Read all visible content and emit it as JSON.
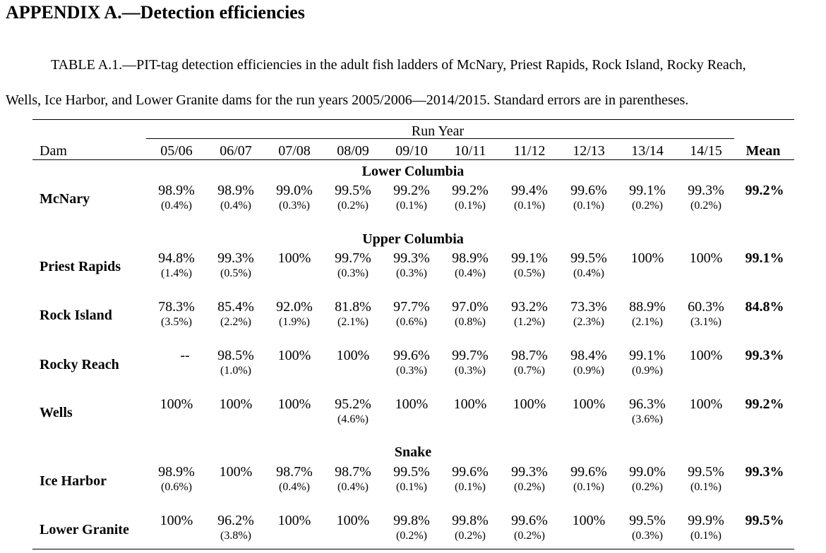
{
  "heading": "APPENDIX A.—Detection efficiencies",
  "caption": {
    "line1": "TABLE A.1.—PIT-tag detection efficiencies in the adult fish ladders of McNary, Priest Rapids, Rock Island, Rocky Reach,",
    "line2": "Wells, Ice Harbor, and Lower Granite dams for the run years 2005/2006—2014/2015. Standard errors are in parentheses."
  },
  "table": {
    "spanner": "Run Year",
    "dam_header": "Dam",
    "mean_header": "Mean",
    "years": [
      "05/06",
      "06/07",
      "07/08",
      "08/09",
      "09/10",
      "10/11",
      "11/12",
      "12/13",
      "13/14",
      "14/15"
    ],
    "groups": [
      {
        "label": "Lower Columbia"
      },
      {
        "label": "Upper Columbia"
      },
      {
        "label": "Snake"
      }
    ],
    "rows": [
      {
        "dam": "McNary",
        "values": [
          "98.9%",
          "98.9%",
          "99.0%",
          "99.5%",
          "99.2%",
          "99.2%",
          "99.4%",
          "99.6%",
          "99.1%",
          "99.3%"
        ],
        "errors": [
          "(0.4%)",
          "(0.4%)",
          "(0.3%)",
          "(0.2%)",
          "(0.1%)",
          "(0.1%)",
          "(0.1%)",
          "(0.1%)",
          "(0.2%)",
          "(0.2%)"
        ],
        "mean": "99.2%"
      },
      {
        "dam": "Priest Rapids",
        "values": [
          "94.8%",
          "99.3%",
          "100%",
          "99.7%",
          "99.3%",
          "98.9%",
          "99.1%",
          "99.5%",
          "100%",
          "100%"
        ],
        "errors": [
          "(1.4%)",
          "(0.5%)",
          "",
          "(0.3%)",
          "(0.3%)",
          "(0.4%)",
          "(0.5%)",
          "(0.4%)",
          "",
          ""
        ],
        "mean": "99.1%"
      },
      {
        "dam": "Rock Island",
        "values": [
          "78.3%",
          "85.4%",
          "92.0%",
          "81.8%",
          "97.7%",
          "97.0%",
          "93.2%",
          "73.3%",
          "88.9%",
          "60.3%"
        ],
        "errors": [
          "(3.5%)",
          "(2.2%)",
          "(1.9%)",
          "(2.1%)",
          "(0.6%)",
          "(0.8%)",
          "(1.2%)",
          "(2.3%)",
          "(2.1%)",
          "(3.1%)"
        ],
        "mean": "84.8%"
      },
      {
        "dam": "Rocky Reach",
        "values": [
          "--",
          "98.5%",
          "100%",
          "100%",
          "99.6%",
          "99.7%",
          "98.7%",
          "98.4%",
          "99.1%",
          "100%"
        ],
        "errors": [
          "",
          "(1.0%)",
          "",
          "",
          "(0.3%)",
          "(0.3%)",
          "(0.7%)",
          "(0.9%)",
          "(0.9%)",
          ""
        ],
        "mean": "99.3%"
      },
      {
        "dam": "Wells",
        "values": [
          "100%",
          "100%",
          "100%",
          "95.2%",
          "100%",
          "100%",
          "100%",
          "100%",
          "96.3%",
          "100%"
        ],
        "errors": [
          "",
          "",
          "",
          "(4.6%)",
          "",
          "",
          "",
          "",
          "(3.6%)",
          ""
        ],
        "mean": "99.2%"
      },
      {
        "dam": "Ice Harbor",
        "values": [
          "98.9%",
          "100%",
          "98.7%",
          "98.7%",
          "99.5%",
          "99.6%",
          "99.3%",
          "99.6%",
          "99.0%",
          "99.5%"
        ],
        "errors": [
          "(0.6%)",
          "",
          "(0.4%)",
          "(0.4%)",
          "(0.1%)",
          "(0.1%)",
          "(0.2%)",
          "(0.1%)",
          "(0.2%)",
          "(0.1%)"
        ],
        "mean": "99.3%"
      },
      {
        "dam": "Lower Granite",
        "values": [
          "100%",
          "96.2%",
          "100%",
          "100%",
          "99.8%",
          "99.8%",
          "99.6%",
          "100%",
          "99.5%",
          "99.9%"
        ],
        "errors": [
          "",
          "(3.8%)",
          "",
          "",
          "(0.2%)",
          "(0.2%)",
          "(0.2%)",
          "",
          "(0.3%)",
          "(0.1%)"
        ],
        "mean": "99.5%"
      }
    ]
  }
}
